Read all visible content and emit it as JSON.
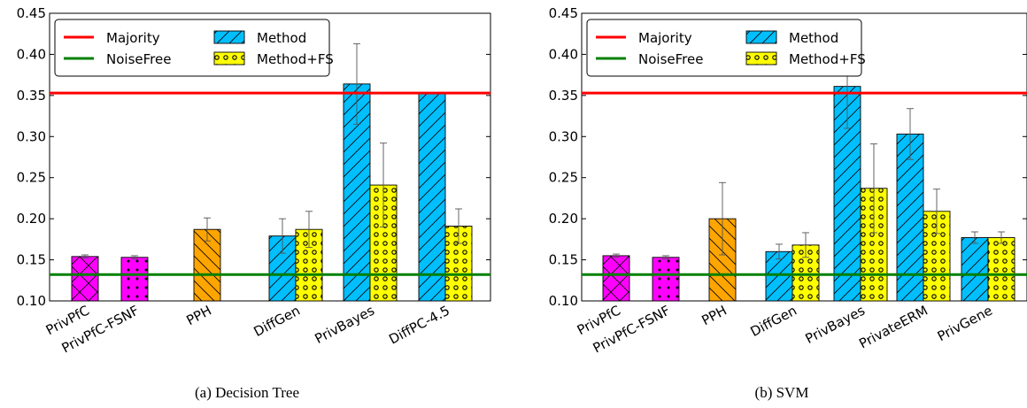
{
  "chart_data": [
    {
      "type": "bar",
      "caption": "(a) Decision Tree",
      "ylim": [
        0.1,
        0.45
      ],
      "yticks": [
        "0.10",
        "0.15",
        "0.20",
        "0.25",
        "0.30",
        "0.35",
        "0.40",
        "0.45"
      ],
      "grid": false,
      "legend_placement": "top-left",
      "lines": [
        {
          "name": "Majority",
          "value": 0.353,
          "color": "#ff0000"
        },
        {
          "name": "NoiseFree",
          "value": 0.132,
          "color": "#008000"
        }
      ],
      "categories": [
        "PrivPfC",
        "PrivPfC-FSNF",
        "PPH",
        "DiffGen",
        "PrivBayes",
        "DiffPC-4.5"
      ],
      "bars": [
        {
          "category": "PrivPfC",
          "value": 0.154,
          "error": 0.002,
          "color": "#ff00ff",
          "hatch": "cross"
        },
        {
          "category": "PrivPfC-FSNF",
          "value": 0.153,
          "error": 0.002,
          "color": "#ff00ff",
          "hatch": "dots"
        },
        {
          "category": "PPH",
          "value": 0.187,
          "error": 0.014,
          "color": "#ffa500",
          "hatch": "back"
        },
        {
          "category": "DiffGen",
          "series": "Method",
          "value": 0.179,
          "error": 0.021,
          "color": "#00bfff",
          "hatch": "fwd"
        },
        {
          "category": "DiffGen",
          "series": "Method+FS",
          "value": 0.187,
          "error": 0.022,
          "color": "#ffff00",
          "hatch": "circles"
        },
        {
          "category": "PrivBayes",
          "series": "Method",
          "value": 0.364,
          "error": 0.049,
          "color": "#00bfff",
          "hatch": "fwd"
        },
        {
          "category": "PrivBayes",
          "series": "Method+FS",
          "value": 0.241,
          "error": 0.051,
          "color": "#ffff00",
          "hatch": "circles"
        },
        {
          "category": "DiffPC-4.5",
          "series": "Method",
          "value": 0.353,
          "error": 0.0,
          "color": "#00bfff",
          "hatch": "fwd"
        },
        {
          "category": "DiffPC-4.5",
          "series": "Method+FS",
          "value": 0.191,
          "error": 0.021,
          "color": "#ffff00",
          "hatch": "circles"
        }
      ],
      "legend": [
        {
          "label": "Majority",
          "kind": "line",
          "color": "#ff0000"
        },
        {
          "label": "Method",
          "kind": "patch",
          "color": "#00bfff",
          "hatch": "fwd"
        },
        {
          "label": "NoiseFree",
          "kind": "line",
          "color": "#008000"
        },
        {
          "label": "Method+FS",
          "kind": "patch",
          "color": "#ffff00",
          "hatch": "circles"
        }
      ]
    },
    {
      "type": "bar",
      "caption": "(b) SVM",
      "ylim": [
        0.1,
        0.45
      ],
      "yticks": [
        "0.10",
        "0.15",
        "0.20",
        "0.25",
        "0.30",
        "0.35",
        "0.40",
        "0.45"
      ],
      "grid": false,
      "legend_placement": "top-left",
      "lines": [
        {
          "name": "Majority",
          "value": 0.353,
          "color": "#ff0000"
        },
        {
          "name": "NoiseFree",
          "value": 0.132,
          "color": "#008000"
        }
      ],
      "categories": [
        "PrivPfC",
        "PrivPfC-FSNF",
        "PPH",
        "DiffGen",
        "PrivBayes",
        "PrivateERM",
        "PrivGene"
      ],
      "bars": [
        {
          "category": "PrivPfC",
          "value": 0.155,
          "error": 0.002,
          "color": "#ff00ff",
          "hatch": "cross"
        },
        {
          "category": "PrivPfC-FSNF",
          "value": 0.153,
          "error": 0.002,
          "color": "#ff00ff",
          "hatch": "dots"
        },
        {
          "category": "PPH",
          "value": 0.2,
          "error": 0.044,
          "color": "#ffa500",
          "hatch": "back"
        },
        {
          "category": "DiffGen",
          "series": "Method",
          "value": 0.16,
          "error": 0.009,
          "color": "#00bfff",
          "hatch": "fwd"
        },
        {
          "category": "DiffGen",
          "series": "Method+FS",
          "value": 0.168,
          "error": 0.015,
          "color": "#ffff00",
          "hatch": "circles"
        },
        {
          "category": "PrivBayes",
          "series": "Method",
          "value": 0.361,
          "error": 0.051,
          "color": "#00bfff",
          "hatch": "fwd"
        },
        {
          "category": "PrivBayes",
          "series": "Method+FS",
          "value": 0.237,
          "error": 0.054,
          "color": "#ffff00",
          "hatch": "circles"
        },
        {
          "category": "PrivateERM",
          "series": "Method",
          "value": 0.303,
          "error": 0.031,
          "color": "#00bfff",
          "hatch": "fwd"
        },
        {
          "category": "PrivateERM",
          "series": "Method+FS",
          "value": 0.209,
          "error": 0.027,
          "color": "#ffff00",
          "hatch": "circles"
        },
        {
          "category": "PrivGene",
          "series": "Method",
          "value": 0.177,
          "error": 0.007,
          "color": "#00bfff",
          "hatch": "fwd"
        },
        {
          "category": "PrivGene",
          "series": "Method+FS",
          "value": 0.177,
          "error": 0.007,
          "color": "#ffff00",
          "hatch": "circles"
        }
      ],
      "legend": [
        {
          "label": "Majority",
          "kind": "line",
          "color": "#ff0000"
        },
        {
          "label": "Method",
          "kind": "patch",
          "color": "#00bfff",
          "hatch": "fwd"
        },
        {
          "label": "NoiseFree",
          "kind": "line",
          "color": "#008000"
        },
        {
          "label": "Method+FS",
          "kind": "patch",
          "color": "#ffff00",
          "hatch": "circles"
        }
      ]
    }
  ]
}
